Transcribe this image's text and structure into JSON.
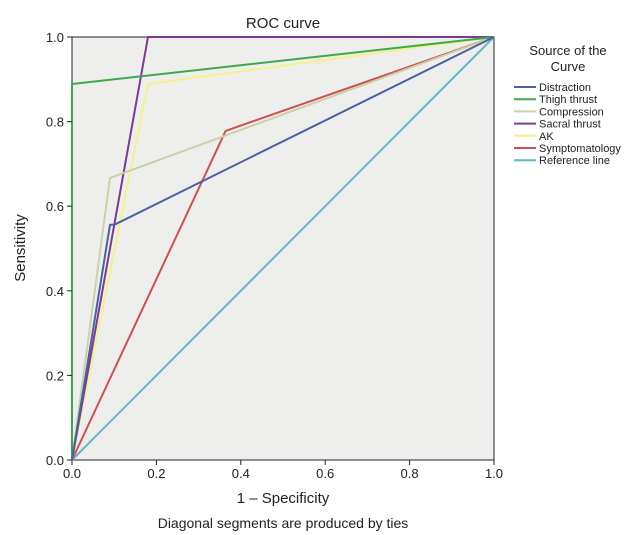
{
  "chart_data": {
    "type": "line",
    "title": "ROC curve",
    "xlabel": "1 – Specificity",
    "ylabel": "Sensitivity",
    "footnote": "Diagonal segments are produced by ties",
    "xlim": [
      0,
      1
    ],
    "ylim": [
      0,
      1
    ],
    "x_ticks": [
      "0.0",
      "0.2",
      "0.4",
      "0.6",
      "0.8",
      "1.0"
    ],
    "y_ticks": [
      "0.0",
      "0.2",
      "0.4",
      "0.6",
      "0.8",
      "1.0"
    ],
    "grid": false,
    "plot_background": "#eeefec",
    "legend": {
      "title_line1": "Source of the",
      "title_line2": "Curve",
      "placement": "right"
    },
    "series": [
      {
        "name": "Distraction",
        "color": "#4a5fa8",
        "x": [
          0,
          0.09,
          0.1,
          1.0
        ],
        "y": [
          0,
          0.556,
          0.556,
          1.0
        ]
      },
      {
        "name": "Thigh thrust",
        "color": "#3daa4a",
        "x": [
          0,
          0,
          1.0
        ],
        "y": [
          0,
          0.889,
          1.0
        ]
      },
      {
        "name": "Compression",
        "color": "#c9d1a8",
        "x": [
          0,
          0.09,
          1.0
        ],
        "y": [
          0,
          0.667,
          1.0
        ]
      },
      {
        "name": "Sacral thrust",
        "color": "#7b3a96",
        "x": [
          0,
          0.18,
          1.0
        ],
        "y": [
          0,
          1.0,
          1.0
        ]
      },
      {
        "name": "AK",
        "color": "#f4f08a",
        "x": [
          0,
          0.18,
          1.0
        ],
        "y": [
          0,
          0.889,
          1.0
        ]
      },
      {
        "name": "Symptomatology",
        "color": "#cf5050",
        "x": [
          0,
          0.364,
          1.0
        ],
        "y": [
          0,
          0.778,
          1.0
        ]
      },
      {
        "name": "Reference line",
        "color": "#5fb9c6",
        "x": [
          0,
          1.0
        ],
        "y": [
          0,
          1.0
        ]
      }
    ]
  }
}
